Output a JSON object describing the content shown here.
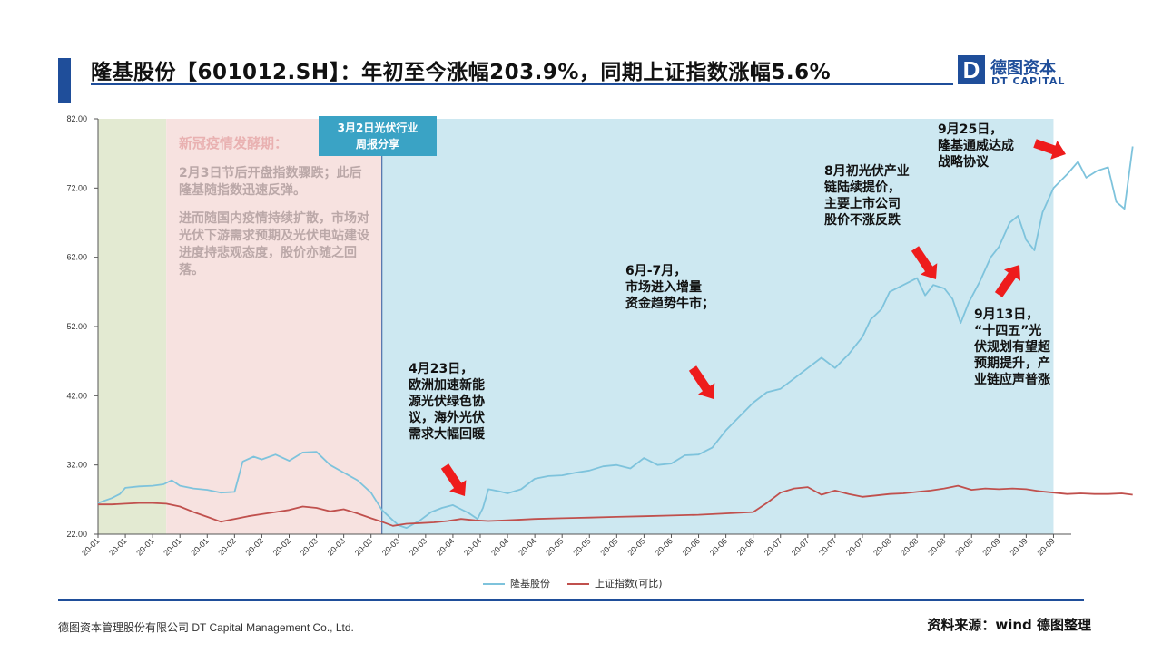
{
  "title": "隆基股份【601012.SH】：年初至今涨幅203.9%，同期上证指数涨幅5.6%",
  "logo": {
    "mark": "D",
    "name_cn": "德图资本",
    "name_en": "DT CAPITAL"
  },
  "footer": {
    "company": "德图资本管理股份有限公司  DT Capital Management  Co., Ltd.",
    "source": "资料来源：wind 德图整理"
  },
  "phase": {
    "title": "新冠疫情发酵期：",
    "text1": "2月3日节后开盘指数骤跌；此后隆基随指数迅速反弹。",
    "text2": "进而随国内疫情持续扩散，市场对光伏下游需求预期及光伏电站建设进度持悲观态度，股价亦随之回落。"
  },
  "tag": {
    "line1": "3月2日光伏行业",
    "line2": "周报分享"
  },
  "annotations": {
    "a1": [
      "4月23日，",
      "欧洲加速新能",
      "源光伏绿色协",
      "议，海外光伏",
      "需求大幅回暖"
    ],
    "a2": [
      "6月-7月，",
      "市场进入增量",
      "资金趋势牛市；"
    ],
    "a3": [
      "8月初光伏产业",
      "链陆续提价，",
      "主要上市公司",
      "股价不涨反跌"
    ],
    "a4": [
      "9月25日，",
      "隆基通威达成",
      "战略协议"
    ],
    "a5": [
      "9月13日，",
      "“十四五”光",
      "伏规划有望超",
      "预期提升，产",
      "业链应声普涨"
    ]
  },
  "colors": {
    "longi": "#7ec3dc",
    "index": "#c0504d",
    "shade_green": "#e3ead2",
    "shade_pink": "#f7e2e0",
    "shade_blue": "#cde8f1",
    "arrow": "#ee1c1c",
    "brand": "#1f4e9a"
  },
  "chart_data": {
    "type": "line",
    "title": "",
    "xlabel": "",
    "ylabel": "",
    "ylim": [
      22,
      82
    ],
    "yticks": [
      "82.00",
      "72.00",
      "62.00",
      "52.00",
      "42.00",
      "32.00",
      "22.00"
    ],
    "x_tick_labels": [
      "20-01",
      "20-01",
      "20-01",
      "20-01",
      "20-01",
      "20-02",
      "20-02",
      "20-02",
      "20-03",
      "20-03",
      "20-03",
      "20-03",
      "20-03",
      "20-04",
      "20-04",
      "20-04",
      "20-04",
      "20-05",
      "20-05",
      "20-05",
      "20-05",
      "20-06",
      "20-06",
      "20-06",
      "20-06",
      "20-07",
      "20-07",
      "20-07",
      "20-07",
      "20-08",
      "20-08",
      "20-08",
      "20-08",
      "20-09",
      "20-09",
      "20-09"
    ],
    "shaded_periods": [
      {
        "from": 0,
        "to": 2.5,
        "color_key": "shade_green"
      },
      {
        "from": 2.5,
        "to": 10.4,
        "color_key": "shade_pink"
      },
      {
        "from": 10.4,
        "to": 35,
        "color_key": "shade_blue"
      }
    ],
    "event_line_at": 10.4,
    "series": [
      {
        "name": "隆基股份",
        "color_key": "longi",
        "points": [
          [
            0,
            26.5
          ],
          [
            0.5,
            27.2
          ],
          [
            0.8,
            27.8
          ],
          [
            1.0,
            28.7
          ],
          [
            1.5,
            28.9
          ],
          [
            2.0,
            29.0
          ],
          [
            2.4,
            29.2
          ],
          [
            2.7,
            29.8
          ],
          [
            3.0,
            29.0
          ],
          [
            3.5,
            28.6
          ],
          [
            4.0,
            28.4
          ],
          [
            4.5,
            28.0
          ],
          [
            5.0,
            28.1
          ],
          [
            5.3,
            32.5
          ],
          [
            5.7,
            33.2
          ],
          [
            6.0,
            32.8
          ],
          [
            6.5,
            33.5
          ],
          [
            7.0,
            32.6
          ],
          [
            7.5,
            33.8
          ],
          [
            8.0,
            33.9
          ],
          [
            8.5,
            32.0
          ],
          [
            9.0,
            30.9
          ],
          [
            9.5,
            29.8
          ],
          [
            10.0,
            28.0
          ],
          [
            10.4,
            25.5
          ],
          [
            10.8,
            24.0
          ],
          [
            11.0,
            23.3
          ],
          [
            11.3,
            22.9
          ],
          [
            11.8,
            24.0
          ],
          [
            12.2,
            25.2
          ],
          [
            12.6,
            25.8
          ],
          [
            13.0,
            26.2
          ],
          [
            13.3,
            25.6
          ],
          [
            13.6,
            25.0
          ],
          [
            13.9,
            24.2
          ],
          [
            14.1,
            25.8
          ],
          [
            14.3,
            28.5
          ],
          [
            14.7,
            28.2
          ],
          [
            15.0,
            27.9
          ],
          [
            15.5,
            28.5
          ],
          [
            16.0,
            30.0
          ],
          [
            16.5,
            30.4
          ],
          [
            17.0,
            30.5
          ],
          [
            17.5,
            30.9
          ],
          [
            18.0,
            31.2
          ],
          [
            18.5,
            31.8
          ],
          [
            19.0,
            32.0
          ],
          [
            19.5,
            31.5
          ],
          [
            20.0,
            33.0
          ],
          [
            20.5,
            32.0
          ],
          [
            21.0,
            32.2
          ],
          [
            21.5,
            33.4
          ],
          [
            22.0,
            33.5
          ],
          [
            22.5,
            34.5
          ],
          [
            23.0,
            37.0
          ],
          [
            23.5,
            39.0
          ],
          [
            24.0,
            41.0
          ],
          [
            24.5,
            42.5
          ],
          [
            25.0,
            43.0
          ],
          [
            25.5,
            44.5
          ],
          [
            26.0,
            46.0
          ],
          [
            26.5,
            47.5
          ],
          [
            27.0,
            46.0
          ],
          [
            27.5,
            48.0
          ],
          [
            28.0,
            50.5
          ],
          [
            28.3,
            53.0
          ],
          [
            28.7,
            54.5
          ],
          [
            29.0,
            57.0
          ],
          [
            29.5,
            58.0
          ],
          [
            30.0,
            59.0
          ],
          [
            30.3,
            56.5
          ],
          [
            30.6,
            58.0
          ],
          [
            31.0,
            57.5
          ],
          [
            31.3,
            56.0
          ],
          [
            31.6,
            52.5
          ],
          [
            31.9,
            55.5
          ],
          [
            32.3,
            58.5
          ],
          [
            32.7,
            62.0
          ],
          [
            33.0,
            63.5
          ],
          [
            33.4,
            67.0
          ],
          [
            33.7,
            68.0
          ],
          [
            34.0,
            64.5
          ],
          [
            34.3,
            63.0
          ],
          [
            34.6,
            68.5
          ],
          [
            35.0,
            72.0
          ],
          [
            35.5,
            74.0
          ],
          [
            35.9,
            75.8
          ],
          [
            36.2,
            73.5
          ],
          [
            36.6,
            74.5
          ],
          [
            37.0,
            75.0
          ],
          [
            37.3,
            70.0
          ],
          [
            37.6,
            69.0
          ],
          [
            37.9,
            78.0
          ]
        ]
      },
      {
        "name": "上证指数(可比)",
        "color_key": "index",
        "points": [
          [
            0,
            26.3
          ],
          [
            0.5,
            26.3
          ],
          [
            1.0,
            26.4
          ],
          [
            1.5,
            26.5
          ],
          [
            2.0,
            26.5
          ],
          [
            2.5,
            26.4
          ],
          [
            3.0,
            26.0
          ],
          [
            3.5,
            25.2
          ],
          [
            4.0,
            24.5
          ],
          [
            4.5,
            23.8
          ],
          [
            5.0,
            24.2
          ],
          [
            5.5,
            24.6
          ],
          [
            6.0,
            24.9
          ],
          [
            6.5,
            25.2
          ],
          [
            7.0,
            25.5
          ],
          [
            7.5,
            26.0
          ],
          [
            8.0,
            25.8
          ],
          [
            8.5,
            25.3
          ],
          [
            9.0,
            25.6
          ],
          [
            9.5,
            25.0
          ],
          [
            10.0,
            24.3
          ],
          [
            10.4,
            23.8
          ],
          [
            10.8,
            23.2
          ],
          [
            11.3,
            23.5
          ],
          [
            11.8,
            23.6
          ],
          [
            12.3,
            23.7
          ],
          [
            12.8,
            23.9
          ],
          [
            13.3,
            24.2
          ],
          [
            13.8,
            24.0
          ],
          [
            14.3,
            23.9
          ],
          [
            15.0,
            24.0
          ],
          [
            16.0,
            24.2
          ],
          [
            17.0,
            24.3
          ],
          [
            18.0,
            24.4
          ],
          [
            19.0,
            24.5
          ],
          [
            20.0,
            24.6
          ],
          [
            21.0,
            24.7
          ],
          [
            22.0,
            24.8
          ],
          [
            23.0,
            25.0
          ],
          [
            24.0,
            25.2
          ],
          [
            24.5,
            26.5
          ],
          [
            25.0,
            28.0
          ],
          [
            25.5,
            28.6
          ],
          [
            26.0,
            28.8
          ],
          [
            26.5,
            27.7
          ],
          [
            27.0,
            28.3
          ],
          [
            27.5,
            27.8
          ],
          [
            28.0,
            27.4
          ],
          [
            28.5,
            27.6
          ],
          [
            29.0,
            27.8
          ],
          [
            29.5,
            27.9
          ],
          [
            30.0,
            28.1
          ],
          [
            30.5,
            28.3
          ],
          [
            31.0,
            28.6
          ],
          [
            31.5,
            29.0
          ],
          [
            32.0,
            28.4
          ],
          [
            32.5,
            28.6
          ],
          [
            33.0,
            28.5
          ],
          [
            33.5,
            28.6
          ],
          [
            34.0,
            28.5
          ],
          [
            34.5,
            28.2
          ],
          [
            35.0,
            28.0
          ],
          [
            35.5,
            27.8
          ],
          [
            36.0,
            27.9
          ],
          [
            36.5,
            27.8
          ],
          [
            37.0,
            27.8
          ],
          [
            37.5,
            27.9
          ],
          [
            37.9,
            27.7
          ]
        ]
      }
    ]
  }
}
